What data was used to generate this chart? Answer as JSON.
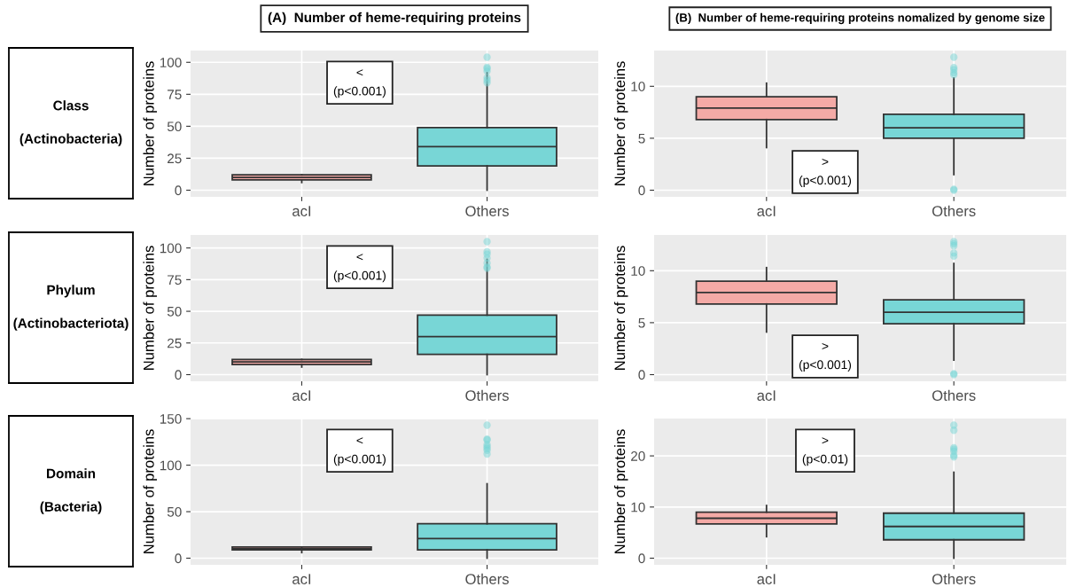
{
  "chart_data": [
    {
      "type": "other",
      "annotations": [
        "Class",
        "(Actinobacteria)"
      ]
    },
    {
      "type": "box",
      "title": "(A)  Number of heme-requiring proteins",
      "ylabel": "Number of proteins",
      "categories": [
        "acI",
        "Others"
      ],
      "colors": [
        "#f4aaa6",
        "#78d6d6"
      ],
      "ylim": [
        -5.2,
        109.2
      ],
      "yticks": [
        0,
        25,
        50,
        75,
        100
      ],
      "grid": true,
      "annotations": [
        "<\n(p<0.001)"
      ],
      "boxes": [
        {
          "low": 6,
          "q1": 8,
          "median": 10,
          "q3": 12,
          "high": 12
        },
        {
          "low": 0,
          "q1": 19,
          "median": 34,
          "q3": 49,
          "high": 92,
          "outliers": [
            104,
            96,
            95,
            93,
            88,
            86,
            84
          ]
        }
      ]
    },
    {
      "type": "box",
      "title": "(B)  Number of heme-requiring proteins nomalized by genome size",
      "ylabel": "Number of proteins",
      "categories": [
        "acI",
        "Others"
      ],
      "colors": [
        "#f4aaa6",
        "#78d6d6"
      ],
      "ylim": [
        -0.64,
        13.44
      ],
      "yticks": [
        0,
        5,
        10
      ],
      "grid": true,
      "annotations": [
        ">\n(p<0.001)"
      ],
      "boxes": [
        {
          "low": 4.1,
          "q1": 6.8,
          "median": 7.9,
          "q3": 9.0,
          "high": 10.3
        },
        {
          "low": 1.5,
          "q1": 5.0,
          "median": 6.0,
          "q3": 7.3,
          "high": 10.8,
          "outliers": [
            12.8,
            11.8,
            11.6,
            11.3,
            11.1,
            0.1,
            0
          ]
        }
      ]
    },
    {
      "type": "other",
      "annotations": [
        "Phylum",
        "(Actinobacteriota)"
      ]
    },
    {
      "type": "box",
      "ylabel": "Number of proteins",
      "categories": [
        "acI",
        "Others"
      ],
      "colors": [
        "#f4aaa6",
        "#78d6d6"
      ],
      "ylim": [
        -5.25,
        110.25
      ],
      "yticks": [
        0,
        25,
        50,
        75,
        100
      ],
      "grid": true,
      "annotations": [
        "<\n(p<0.001)"
      ],
      "boxes": [
        {
          "low": 6,
          "q1": 8,
          "median": 10,
          "q3": 12,
          "high": 12
        },
        {
          "low": 0,
          "q1": 16,
          "median": 30,
          "q3": 47,
          "high": 91,
          "outliers": [
            105,
            97,
            95,
            92,
            88,
            85,
            84
          ]
        }
      ]
    },
    {
      "type": "box",
      "ylabel": "Number of proteins",
      "categories": [
        "acI",
        "Others"
      ],
      "colors": [
        "#f4aaa6",
        "#78d6d6"
      ],
      "ylim": [
        -0.64,
        13.44
      ],
      "yticks": [
        0,
        5,
        10
      ],
      "grid": true,
      "annotations": [
        ">\n(p<0.001)"
      ],
      "boxes": [
        {
          "low": 4.1,
          "q1": 6.8,
          "median": 7.9,
          "q3": 9.0,
          "high": 10.3
        },
        {
          "low": 1.4,
          "q1": 4.9,
          "median": 6.0,
          "q3": 7.2,
          "high": 10.7,
          "outliers": [
            12.8,
            12.6,
            12.4,
            11.7,
            11.4,
            0.1,
            0
          ]
        }
      ]
    },
    {
      "type": "other",
      "annotations": [
        "Domain",
        "(Bacteria)"
      ]
    },
    {
      "type": "box",
      "ylabel": "Number of proteins",
      "categories": [
        "acI",
        "Others"
      ],
      "colors": [
        "#f4aaa6",
        "#78d6d6"
      ],
      "ylim": [
        -7.15,
        150.15
      ],
      "yticks": [
        0,
        50,
        100,
        150
      ],
      "grid": true,
      "annotations": [
        "<\n(p<0.001)"
      ],
      "boxes": [
        {
          "low": 6,
          "q1": 9,
          "median": 10,
          "q3": 12,
          "high": 12
        },
        {
          "low": 0,
          "q1": 9,
          "median": 21,
          "q3": 37,
          "high": 80,
          "outliers": [
            143,
            128,
            127,
            122,
            120,
            118,
            116,
            112
          ]
        }
      ]
    },
    {
      "type": "box",
      "ylabel": "Number of proteins",
      "categories": [
        "acI",
        "Others"
      ],
      "colors": [
        "#f4aaa6",
        "#78d6d6"
      ],
      "ylim": [
        -1.3,
        27.3
      ],
      "yticks": [
        0,
        10,
        20
      ],
      "grid": true,
      "annotations": [
        ">\n(p<0.01)"
      ],
      "boxes": [
        {
          "low": 4.2,
          "q1": 6.7,
          "median": 7.8,
          "q3": 9.0,
          "high": 10.3
        },
        {
          "low": 0,
          "q1": 3.6,
          "median": 6.2,
          "q3": 8.8,
          "high": 16.8,
          "outliers": [
            26,
            25,
            21.6,
            21.3,
            20.9,
            20.1,
            19.8
          ]
        }
      ]
    }
  ]
}
